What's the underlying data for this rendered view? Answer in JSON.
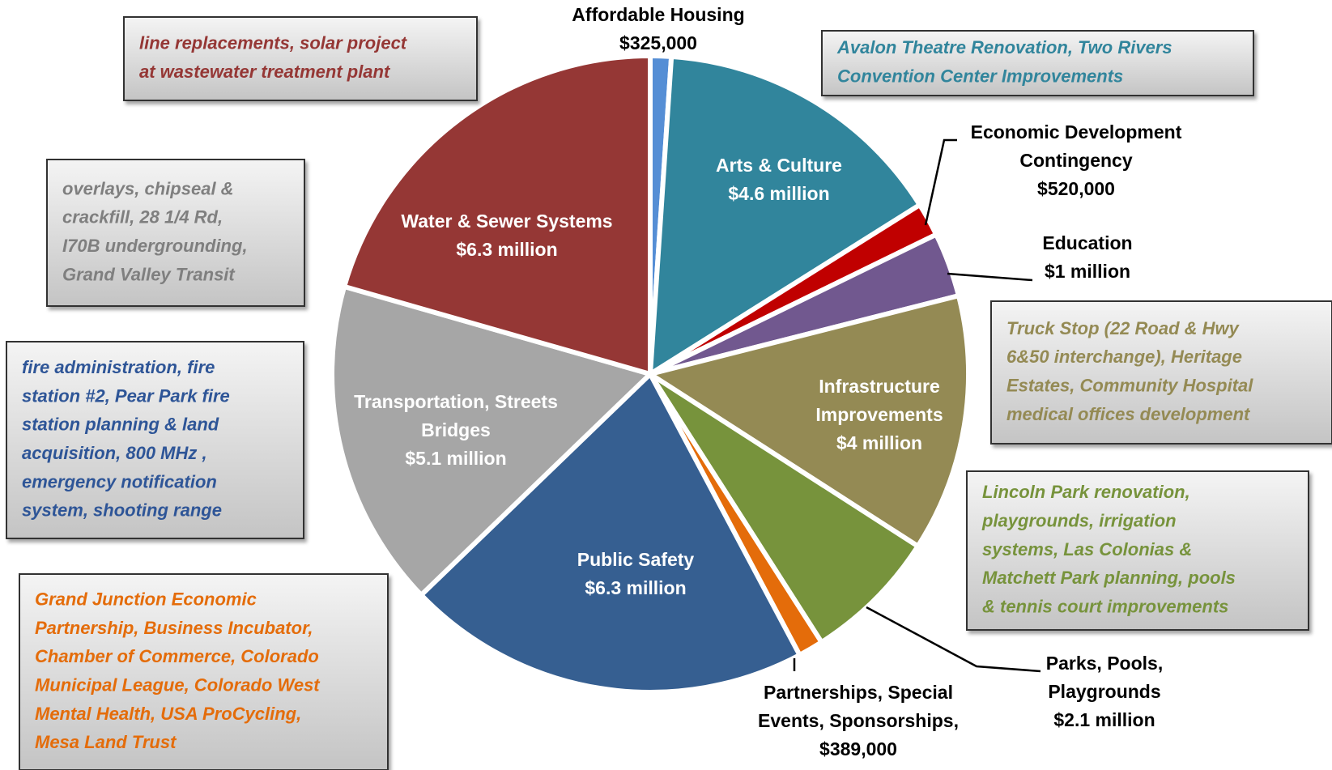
{
  "chart_data": {
    "type": "pie",
    "categories": [
      "Affordable Housing",
      "Arts & Culture",
      "Economic Development\nContingency",
      "Education",
      "Infrastructure\nImprovements",
      "Parks, Pools,\nPlaygrounds",
      "Partnerships, Special\nEvents, Sponsorships,",
      "Public Safety",
      "Transportation, Streets\nBridges",
      "Water & Sewer Systems"
    ],
    "values": [
      325000,
      4600000,
      520000,
      1000000,
      4000000,
      2100000,
      389000,
      6300000,
      5100000,
      6300000
    ],
    "value_labels": [
      "$325,000",
      "$4.6 million",
      "$520,000",
      "$1 million",
      "$4 million",
      "$2.1 million",
      "$389,000",
      "$6.3 million",
      "$5.1 million",
      "$6.3 million"
    ],
    "colors": [
      "#558ed5",
      "#31859c",
      "#c00000",
      "#71588f",
      "#948a54",
      "#77933c",
      "#e46c0a",
      "#365f91",
      "#a6a6a6",
      "#953735"
    ],
    "annotations": [
      {
        "lines": [
          "line replacements, solar project",
          "at wastewater treatment plant"
        ],
        "color": "#953735"
      },
      {
        "lines": [
          "Avalon Theatre Renovation, Two Rivers",
          "Convention Center Improvements"
        ],
        "color": "#31859c"
      },
      {
        "lines": [
          "overlays, chipseal &",
          "crackfill, 28 1/4 Rd,",
          "I70B undergrounding,",
          "Grand Valley Transit"
        ],
        "color": "#7f7f7f"
      },
      {
        "lines": [
          "fire administration, fire",
          "station #2, Pear Park fire",
          "station planning & land",
          "acquisition, 800 MHz ,",
          "emergency notification",
          "system, shooting range"
        ],
        "color": "#2e5597"
      },
      {
        "lines": [
          "Grand Junction Economic",
          "Partnership, Business Incubator,",
          "Chamber of Commerce, Colorado",
          "Municipal League, Colorado West",
          "Mental Health, USA ProCycling,",
          "Mesa Land Trust"
        ],
        "color": "#e46c0a"
      },
      {
        "lines": [
          "Truck Stop (22 Road & Hwy",
          "6&50 interchange), Heritage",
          "Estates, Community Hospital",
          "medical offices development"
        ],
        "color": "#948a54"
      },
      {
        "lines": [
          "Lincoln Park renovation,",
          "playgrounds, irrigation",
          "systems, Las Colonias &",
          "Matchett Park planning, pools",
          "& tennis court improvements"
        ],
        "color": "#77933c"
      }
    ]
  }
}
